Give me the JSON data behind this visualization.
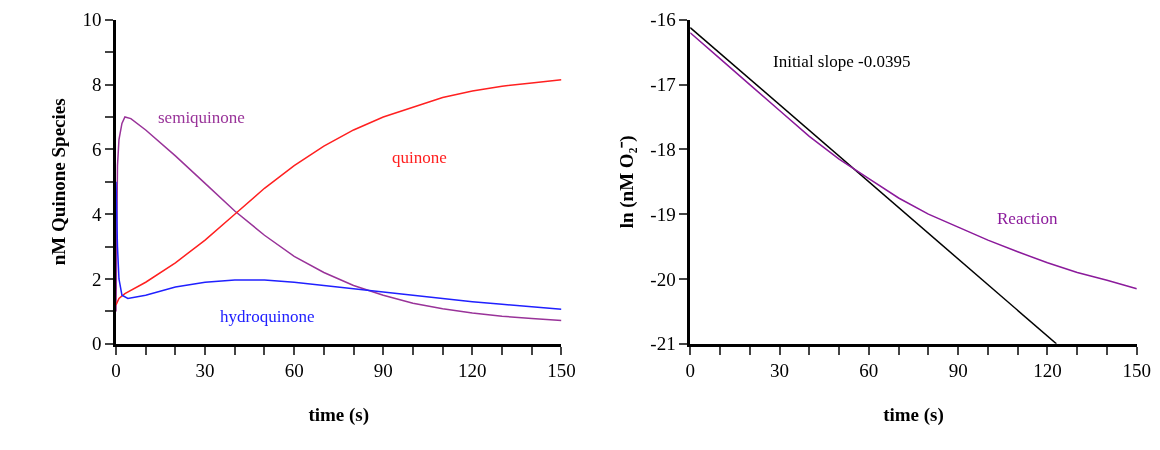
{
  "chart_data": [
    {
      "type": "line",
      "xlabel": "time (s)",
      "ylabel": "nM Quinone Species",
      "xlim": [
        0,
        150
      ],
      "xticks": [
        0,
        {
          "value": 10,
          "label": null
        },
        {
          "value": 20,
          "label": null
        },
        30,
        {
          "value": 40,
          "label": null
        },
        {
          "value": 50,
          "label": null
        },
        60,
        {
          "value": 70,
          "label": null
        },
        {
          "value": 80,
          "label": null
        },
        90,
        {
          "value": 100,
          "label": null
        },
        {
          "value": 110,
          "label": null
        },
        120,
        {
          "value": 130,
          "label": null
        },
        {
          "value": 140,
          "label": null
        },
        150
      ],
      "ylim": [
        0,
        10
      ],
      "yticks": [
        0,
        {
          "value": 1,
          "label": null
        },
        2,
        {
          "value": 3,
          "label": null
        },
        4,
        {
          "value": 5,
          "label": null
        },
        6,
        {
          "value": 7,
          "label": null
        },
        8,
        {
          "value": 9,
          "label": null
        },
        10
      ],
      "marker": "none",
      "line_style": "solid",
      "series": [
        {
          "color": "#993399",
          "x": [
            0,
            0.5,
            1,
            2,
            3,
            5,
            10,
            20,
            30,
            40,
            50,
            60,
            70,
            80,
            90,
            100,
            110,
            120,
            130,
            140,
            150
          ],
          "values": [
            1.0,
            5.5,
            6.3,
            6.8,
            7.0,
            6.95,
            6.6,
            5.8,
            4.95,
            4.1,
            3.35,
            2.7,
            2.2,
            1.8,
            1.5,
            1.25,
            1.08,
            0.95,
            0.85,
            0.78,
            0.72
          ]
        },
        {
          "color": "#ff2020",
          "x": [
            0,
            1,
            3,
            10,
            20,
            30,
            40,
            50,
            60,
            70,
            80,
            90,
            100,
            110,
            120,
            130,
            140,
            150
          ],
          "values": [
            1.2,
            1.4,
            1.55,
            1.9,
            2.5,
            3.2,
            4.0,
            4.8,
            5.5,
            6.1,
            6.6,
            7.0,
            7.3,
            7.6,
            7.8,
            7.95,
            8.05,
            8.15
          ]
        },
        {
          "color": "#2020ff",
          "x": [
            0,
            0.5,
            1,
            2,
            4,
            10,
            20,
            30,
            40,
            50,
            60,
            70,
            80,
            90,
            100,
            110,
            120,
            130,
            140,
            150
          ],
          "values": [
            5.0,
            3.0,
            2.0,
            1.5,
            1.4,
            1.5,
            1.75,
            1.9,
            1.97,
            1.97,
            1.9,
            1.8,
            1.7,
            1.6,
            1.5,
            1.4,
            1.3,
            1.22,
            1.14,
            1.07
          ]
        }
      ],
      "annotations": [
        "semiquinone",
        "quinone",
        "hydroquinone"
      ]
    },
    {
      "type": "line",
      "xlabel": "time (s)",
      "ylabel": "ln (nM O₂⁻)",
      "xlim": [
        0,
        150
      ],
      "xticks": [
        0,
        {
          "value": 10,
          "label": null
        },
        {
          "value": 20,
          "label": null
        },
        30,
        {
          "value": 40,
          "label": null
        },
        {
          "value": 50,
          "label": null
        },
        60,
        {
          "value": 70,
          "label": null
        },
        {
          "value": 80,
          "label": null
        },
        90,
        {
          "value": 100,
          "label": null
        },
        {
          "value": 110,
          "label": null
        },
        120,
        {
          "value": 130,
          "label": null
        },
        {
          "value": 140,
          "label": null
        },
        150
      ],
      "ylim": [
        -21,
        -16
      ],
      "yticks": [
        -21,
        -20,
        -19,
        -18,
        -17,
        -16
      ],
      "marker": "none",
      "line_style": "solid",
      "series": [
        {
          "color": "#000000",
          "x": [
            0,
            123
          ],
          "values": [
            -16.12,
            -21
          ]
        },
        {
          "color": "#8b1a9b",
          "x": [
            0,
            10,
            20,
            30,
            40,
            50,
            60,
            70,
            80,
            90,
            100,
            110,
            120,
            130,
            140,
            150
          ],
          "values": [
            -16.2,
            -16.6,
            -17.0,
            -17.4,
            -17.8,
            -18.15,
            -18.45,
            -18.75,
            -19.0,
            -19.2,
            -19.4,
            -19.58,
            -19.75,
            -19.9,
            -20.02,
            -20.15
          ]
        }
      ],
      "annotations": [
        "Initial slope -0.0395",
        "Reaction"
      ]
    }
  ]
}
